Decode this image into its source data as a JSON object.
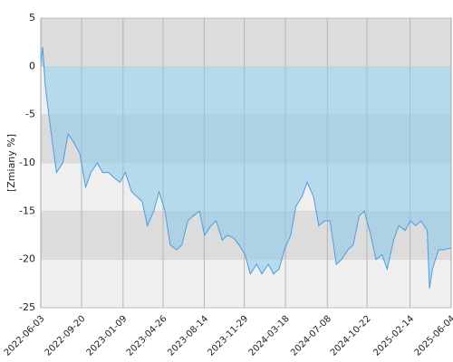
{
  "chart_data": {
    "type": "area",
    "y_label": "[Zmiany %]",
    "x": [
      "2022-06-03",
      "2022-06-08",
      "2022-06-15",
      "2022-07-01",
      "2022-07-15",
      "2022-08-01",
      "2022-08-15",
      "2022-09-01",
      "2022-09-15",
      "2022-10-01",
      "2022-10-15",
      "2022-11-01",
      "2022-11-15",
      "2022-12-01",
      "2022-12-15",
      "2023-01-01",
      "2023-01-15",
      "2023-02-01",
      "2023-02-15",
      "2023-03-01",
      "2023-03-15",
      "2023-04-01",
      "2023-04-15",
      "2023-05-01",
      "2023-05-15",
      "2023-06-01",
      "2023-06-15",
      "2023-07-01",
      "2023-07-15",
      "2023-08-01",
      "2023-08-15",
      "2023-09-01",
      "2023-09-15",
      "2023-10-01",
      "2023-10-15",
      "2023-11-01",
      "2023-11-15",
      "2023-12-01",
      "2023-12-15",
      "2024-01-01",
      "2024-01-15",
      "2024-02-01",
      "2024-02-15",
      "2024-03-01",
      "2024-03-15",
      "2024-04-01",
      "2024-04-15",
      "2024-05-01",
      "2024-05-15",
      "2024-06-01",
      "2024-06-15",
      "2024-07-01",
      "2024-07-15",
      "2024-08-01",
      "2024-08-15",
      "2024-09-01",
      "2024-09-15",
      "2024-10-01",
      "2024-10-15",
      "2024-11-01",
      "2024-11-15",
      "2024-12-01",
      "2024-12-15",
      "2025-01-01",
      "2025-01-15",
      "2025-02-01",
      "2025-02-15",
      "2025-03-01",
      "2025-03-15",
      "2025-04-01",
      "2025-04-07",
      "2025-04-15",
      "2025-05-01",
      "2025-05-15",
      "2025-06-04"
    ],
    "values": [
      0.5,
      2,
      -2,
      -7,
      -11,
      -10,
      -7,
      -8,
      -9,
      -12.5,
      -11,
      -10,
      -11,
      -11,
      -11.5,
      -12,
      -11,
      -13,
      -13.5,
      -14,
      -16.5,
      -15,
      -13,
      -15,
      -18.5,
      -19,
      -18.5,
      -16,
      -15.5,
      -15,
      -17.5,
      -16.5,
      -16,
      -18,
      -17.5,
      -17.8,
      -18.5,
      -19.5,
      -21.5,
      -20.5,
      -21.5,
      -20.5,
      -21.5,
      -21,
      -19,
      -17.5,
      -14.5,
      -13.5,
      -12,
      -13.5,
      -16.5,
      -16,
      -16,
      -20.5,
      -20,
      -19,
      -18.5,
      -15.5,
      -15,
      -17.5,
      -20,
      -19.5,
      -21,
      -18,
      -16.5,
      -17,
      -16,
      -16.5,
      -16,
      -17,
      -23,
      -21,
      -19,
      -19,
      -18.8
    ],
    "color": "#4a9de8",
    "fill": "#8fcbe8",
    "xlim": [
      "2022-06-03",
      "2025-06-04"
    ],
    "xticks": [
      "2022-06-03",
      "2022-09-20",
      "2023-01-09",
      "2023-04-26",
      "2023-08-14",
      "2023-11-29",
      "2024-03-18",
      "2024-07-08",
      "2024-10-22",
      "2025-02-14",
      "2025-06-04"
    ],
    "ylim": [
      -25,
      5
    ],
    "yticks": [
      5,
      0,
      -5,
      -10,
      -15,
      -20,
      -25
    ],
    "grid": true
  }
}
